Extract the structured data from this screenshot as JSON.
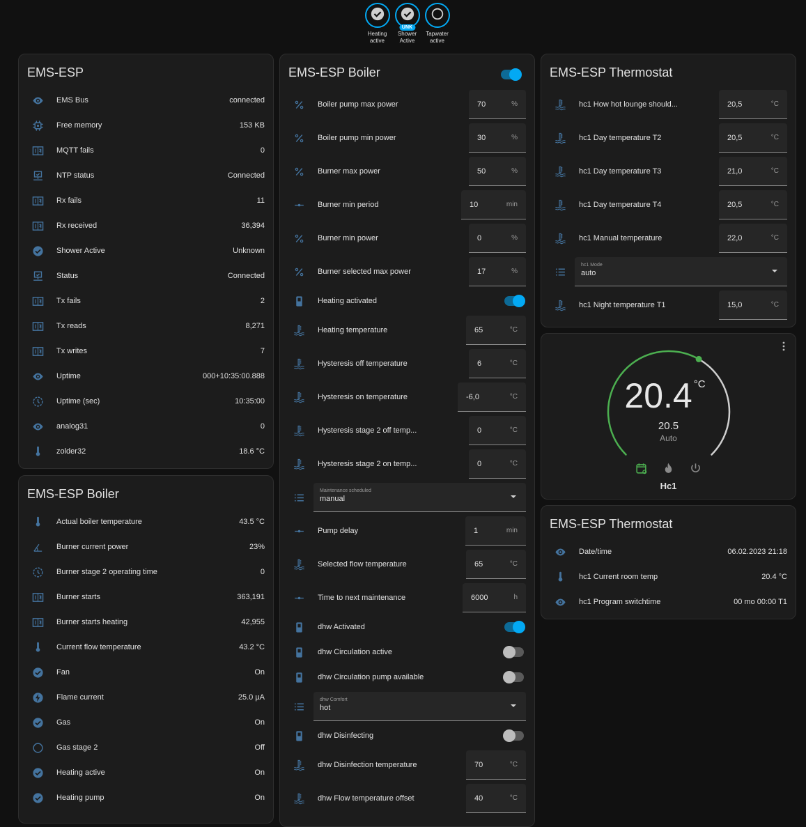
{
  "colors": {
    "accent": "#03a9f4",
    "icon": "#44739e",
    "green": "#4caf50",
    "bg": "#111111",
    "card": "#1c1c1c"
  },
  "badges": [
    {
      "label": "Heating active",
      "icon": "check-circle-icon",
      "unk": ""
    },
    {
      "label": "Shower Active",
      "icon": "check-circle-icon",
      "unk": "UNK"
    },
    {
      "label": "Tapwater active",
      "icon": "circle-outline-icon",
      "unk": ""
    }
  ],
  "system_card": {
    "title": "EMS-ESP",
    "rows": [
      {
        "icon": "eye",
        "label": "EMS Bus",
        "value": "connected"
      },
      {
        "icon": "chip",
        "label": "Free memory",
        "value": "153 KB"
      },
      {
        "icon": "counter",
        "label": "MQTT fails",
        "value": "0"
      },
      {
        "icon": "monitor",
        "label": "NTP status",
        "value": "Connected"
      },
      {
        "icon": "counter",
        "label": "Rx fails",
        "value": "11"
      },
      {
        "icon": "counter",
        "label": "Rx received",
        "value": "36,394"
      },
      {
        "icon": "check",
        "label": "Shower Active",
        "value": "Unknown"
      },
      {
        "icon": "monitor",
        "label": "Status",
        "value": "Connected"
      },
      {
        "icon": "counter",
        "label": "Tx fails",
        "value": "2"
      },
      {
        "icon": "counter",
        "label": "Tx reads",
        "value": "8,271"
      },
      {
        "icon": "counter",
        "label": "Tx writes",
        "value": "7"
      },
      {
        "icon": "eye",
        "label": "Uptime",
        "value": "000+10:35:00.888"
      },
      {
        "icon": "clock",
        "label": "Uptime (sec)",
        "value": "10:35:00"
      },
      {
        "icon": "eye",
        "label": "analog31",
        "value": "0"
      },
      {
        "icon": "thermometer",
        "label": "zolder32",
        "value": "18.6 °C"
      }
    ]
  },
  "boiler_sensors_card": {
    "title": "EMS-ESP Boiler",
    "rows": [
      {
        "icon": "thermometer",
        "label": "Actual boiler temperature",
        "value": "43.5 °C"
      },
      {
        "icon": "angle",
        "label": "Burner current power",
        "value": "23%"
      },
      {
        "icon": "clock",
        "label": "Burner stage 2 operating time",
        "value": "0"
      },
      {
        "icon": "counter",
        "label": "Burner starts",
        "value": "363,191"
      },
      {
        "icon": "counter",
        "label": "Burner starts heating",
        "value": "42,955"
      },
      {
        "icon": "thermometer",
        "label": "Current flow temperature",
        "value": "43.2 °C"
      },
      {
        "icon": "check",
        "label": "Fan",
        "value": "On"
      },
      {
        "icon": "flash",
        "label": "Flame current",
        "value": "25.0 µA"
      },
      {
        "icon": "check",
        "label": "Gas",
        "value": "On"
      },
      {
        "icon": "circle",
        "label": "Gas stage 2",
        "value": "Off"
      },
      {
        "icon": "check",
        "label": "Heating active",
        "value": "On"
      },
      {
        "icon": "check",
        "label": "Heating pump",
        "value": "On"
      }
    ]
  },
  "boiler_controls_card": {
    "title": "EMS-ESP Boiler",
    "header_toggle": true,
    "rows": [
      {
        "type": "num",
        "icon": "percent",
        "label": "Boiler pump max power",
        "value": "70",
        "unit": "%"
      },
      {
        "type": "num",
        "icon": "percent",
        "label": "Boiler pump min power",
        "value": "30",
        "unit": "%"
      },
      {
        "type": "num",
        "icon": "percent",
        "label": "Burner max power",
        "value": "50",
        "unit": "%"
      },
      {
        "type": "num",
        "icon": "dots",
        "label": "Burner min period",
        "value": "10",
        "unit": "min"
      },
      {
        "type": "num",
        "icon": "percent",
        "label": "Burner min power",
        "value": "0",
        "unit": "%"
      },
      {
        "type": "num",
        "icon": "percent",
        "label": "Burner selected max power",
        "value": "17",
        "unit": "%"
      },
      {
        "type": "tog",
        "icon": "switch",
        "label": "Heating activated",
        "on": true
      },
      {
        "type": "num",
        "icon": "water-thermo",
        "label": "Heating temperature",
        "value": "65",
        "unit": "°C"
      },
      {
        "type": "num",
        "icon": "water-thermo",
        "label": "Hysteresis off temperature",
        "value": "6",
        "unit": "°C"
      },
      {
        "type": "num",
        "icon": "water-thermo",
        "label": "Hysteresis on temperature",
        "value": "-6,0",
        "unit": "°C"
      },
      {
        "type": "num",
        "icon": "water-thermo",
        "label": "Hysteresis stage 2 off temp...",
        "value": "0",
        "unit": "°C"
      },
      {
        "type": "num",
        "icon": "water-thermo",
        "label": "Hysteresis stage 2 on temp...",
        "value": "0",
        "unit": "°C"
      },
      {
        "type": "sel",
        "icon": "list",
        "label": "Maintenance scheduled",
        "value": "manual"
      },
      {
        "type": "num",
        "icon": "dots",
        "label": "Pump delay",
        "value": "1",
        "unit": "min"
      },
      {
        "type": "num",
        "icon": "water-thermo",
        "label": "Selected flow temperature",
        "value": "65",
        "unit": "°C"
      },
      {
        "type": "num",
        "icon": "dots",
        "label": "Time to next maintenance",
        "value": "6000",
        "unit": "h"
      },
      {
        "type": "tog",
        "icon": "switch",
        "label": "dhw Activated",
        "on": true
      },
      {
        "type": "tog",
        "icon": "switch",
        "label": "dhw Circulation active",
        "on": false
      },
      {
        "type": "tog",
        "icon": "switch",
        "label": "dhw Circulation pump available",
        "on": false
      },
      {
        "type": "sel",
        "icon": "list",
        "label": "dhw Comfort",
        "value": "hot"
      },
      {
        "type": "tog",
        "icon": "switch",
        "label": "dhw Disinfecting",
        "on": false
      },
      {
        "type": "num",
        "icon": "water-thermo",
        "label": "dhw Disinfection temperature",
        "value": "70",
        "unit": "°C"
      },
      {
        "type": "num",
        "icon": "water-thermo",
        "label": "dhw Flow temperature offset",
        "value": "40",
        "unit": "°C"
      }
    ]
  },
  "thermostat_controls_card": {
    "title": "EMS-ESP Thermostat",
    "rows": [
      {
        "type": "num",
        "icon": "water-thermo",
        "label": "hc1 How hot lounge should...",
        "value": "20,5",
        "unit": "°C"
      },
      {
        "type": "num",
        "icon": "water-thermo",
        "label": "hc1 Day temperature T2",
        "value": "20,5",
        "unit": "°C"
      },
      {
        "type": "num",
        "icon": "water-thermo",
        "label": "hc1 Day temperature T3",
        "value": "21,0",
        "unit": "°C"
      },
      {
        "type": "num",
        "icon": "water-thermo",
        "label": "hc1 Day temperature T4",
        "value": "20,5",
        "unit": "°C"
      },
      {
        "type": "num",
        "icon": "water-thermo",
        "label": "hc1 Manual temperature",
        "value": "22,0",
        "unit": "°C"
      },
      {
        "type": "sel",
        "icon": "list",
        "label": "hc1 Mode",
        "value": "auto"
      },
      {
        "type": "num",
        "icon": "water-thermo",
        "label": "hc1 Night temperature T1",
        "value": "15,0",
        "unit": "°C"
      }
    ]
  },
  "thermostat": {
    "current": "20.4",
    "unit": "°C",
    "target": "20.5",
    "mode": "Auto",
    "name": "Hc1",
    "setpoint_fraction": 0.61,
    "modes": [
      {
        "icon": "calendar-sync-icon",
        "active": true
      },
      {
        "icon": "fire-icon",
        "active": false
      },
      {
        "icon": "power-icon",
        "active": false
      }
    ]
  },
  "thermostat_sensors_card": {
    "title": "EMS-ESP Thermostat",
    "rows": [
      {
        "icon": "eye",
        "label": "Date/time",
        "value": "06.02.2023 21:18"
      },
      {
        "icon": "thermometer",
        "label": "hc1 Current room temp",
        "value": "20.4 °C"
      },
      {
        "icon": "eye",
        "label": "hc1 Program switchtime",
        "value": "00 mo 00:00 T1"
      }
    ]
  }
}
